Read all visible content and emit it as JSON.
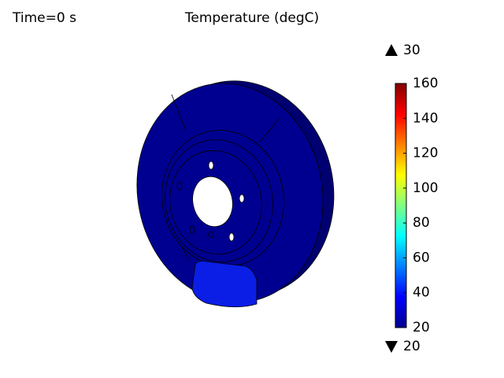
{
  "time_label": "Time=0 s",
  "title": "Temperature (degC)",
  "colorbar": {
    "range": [
      20,
      160
    ],
    "ticks": [
      20,
      40,
      60,
      80,
      100,
      120,
      140,
      160
    ],
    "max": 30,
    "min": 20
  }
}
